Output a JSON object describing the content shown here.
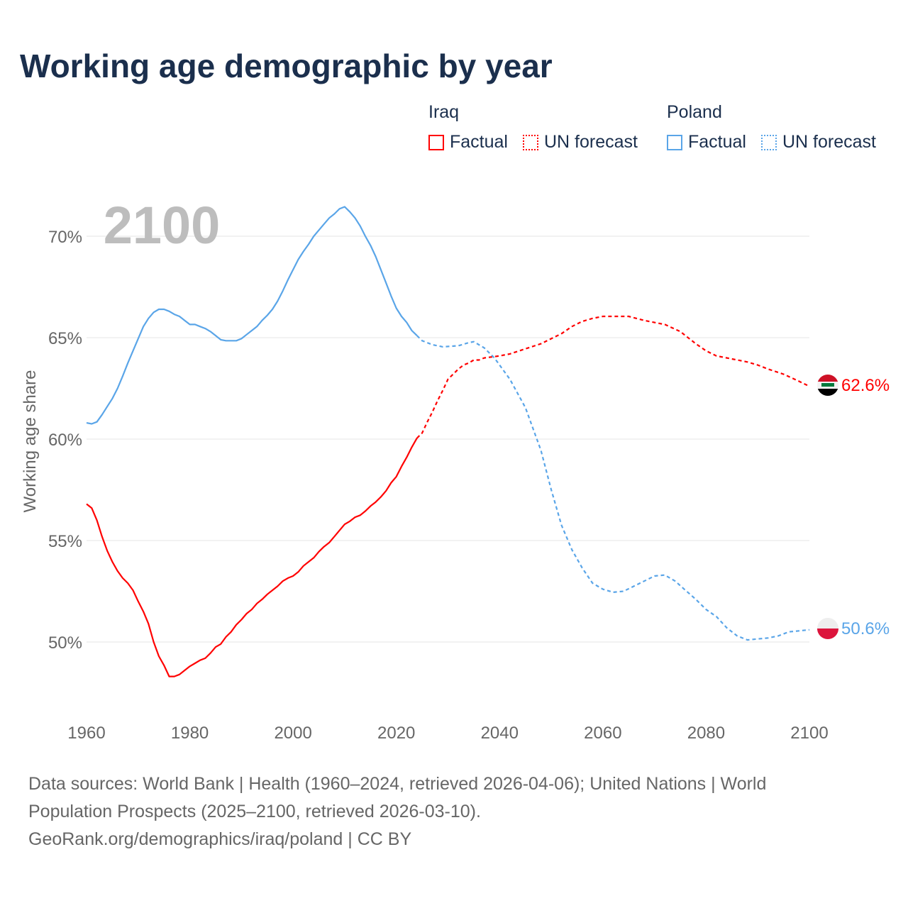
{
  "title": "Working age demographic by year",
  "legend": {
    "groups": [
      {
        "country": "Iraq",
        "factual": "Factual",
        "forecast": "UN forecast",
        "color": "#ff0000"
      },
      {
        "country": "Poland",
        "factual": "Factual",
        "forecast": "UN forecast",
        "color": "#5aa5e8"
      }
    ]
  },
  "footer": {
    "line1": "Data sources: World Bank | Health (1960–2024, retrieved 2026-04-06); United Nations | World",
    "line2": "Population Prospects (2025–2100, retrieved 2026-03-10).",
    "line3": "GeoRank.org/demographics/iraq/poland | CC BY"
  },
  "chart_data": {
    "type": "line",
    "title": "Working age demographic by year",
    "year_watermark": "2100",
    "xlabel": "",
    "ylabel": "Working age share",
    "xlim": [
      1960,
      2100
    ],
    "ylim": [
      46.5,
      72
    ],
    "x_ticks": [
      "1960",
      "1980",
      "2000",
      "2020",
      "2040",
      "2060",
      "2080",
      "2100"
    ],
    "y_ticks": [
      {
        "v": 50,
        "label": "50%"
      },
      {
        "v": 55,
        "label": "55%"
      },
      {
        "v": 60,
        "label": "60%"
      },
      {
        "v": 65,
        "label": "65%"
      },
      {
        "v": 70,
        "label": "70%"
      }
    ],
    "grid": true,
    "series": [
      {
        "name": "Iraq",
        "color": "#ff0000",
        "end_label": "62.6%",
        "factual": [
          [
            1960,
            56.8
          ],
          [
            1961,
            56.6
          ],
          [
            1962,
            56.0
          ],
          [
            1963,
            55.2
          ],
          [
            1964,
            54.5
          ],
          [
            1965,
            53.95
          ],
          [
            1966,
            53.5
          ],
          [
            1967,
            53.15
          ],
          [
            1968,
            52.9
          ],
          [
            1969,
            52.55
          ],
          [
            1970,
            52.0
          ],
          [
            1971,
            51.5
          ],
          [
            1972,
            50.9
          ],
          [
            1973,
            50.0
          ],
          [
            1974,
            49.3
          ],
          [
            1975,
            48.85
          ],
          [
            1976,
            48.3
          ],
          [
            1977,
            48.3
          ],
          [
            1978,
            48.4
          ],
          [
            1979,
            48.6
          ],
          [
            1980,
            48.8
          ],
          [
            1981,
            48.95
          ],
          [
            1982,
            49.1
          ],
          [
            1983,
            49.2
          ],
          [
            1984,
            49.45
          ],
          [
            1985,
            49.75
          ],
          [
            1986,
            49.9
          ],
          [
            1987,
            50.25
          ],
          [
            1988,
            50.5
          ],
          [
            1989,
            50.85
          ],
          [
            1990,
            51.1
          ],
          [
            1991,
            51.4
          ],
          [
            1992,
            51.6
          ],
          [
            1993,
            51.9
          ],
          [
            1994,
            52.1
          ],
          [
            1995,
            52.35
          ],
          [
            1996,
            52.55
          ],
          [
            1997,
            52.75
          ],
          [
            1998,
            53.0
          ],
          [
            1999,
            53.15
          ],
          [
            2000,
            53.25
          ],
          [
            2001,
            53.45
          ],
          [
            2002,
            53.75
          ],
          [
            2003,
            53.95
          ],
          [
            2004,
            54.15
          ],
          [
            2005,
            54.45
          ],
          [
            2006,
            54.7
          ],
          [
            2007,
            54.9
          ],
          [
            2008,
            55.2
          ],
          [
            2009,
            55.5
          ],
          [
            2010,
            55.8
          ],
          [
            2011,
            55.95
          ],
          [
            2012,
            56.15
          ],
          [
            2013,
            56.25
          ],
          [
            2014,
            56.45
          ],
          [
            2015,
            56.7
          ],
          [
            2016,
            56.9
          ],
          [
            2017,
            57.15
          ],
          [
            2018,
            57.45
          ],
          [
            2019,
            57.85
          ],
          [
            2020,
            58.15
          ],
          [
            2021,
            58.65
          ],
          [
            2022,
            59.1
          ],
          [
            2023,
            59.6
          ],
          [
            2024,
            60.05
          ]
        ],
        "forecast": [
          [
            2024,
            60.05
          ],
          [
            2025,
            60.3
          ],
          [
            2026,
            60.85
          ],
          [
            2027,
            61.35
          ],
          [
            2028,
            61.9
          ],
          [
            2029,
            62.4
          ],
          [
            2030,
            62.95
          ],
          [
            2031,
            63.2
          ],
          [
            2032,
            63.45
          ],
          [
            2033,
            63.65
          ],
          [
            2034,
            63.75
          ],
          [
            2035,
            63.9
          ],
          [
            2036,
            63.9
          ],
          [
            2037,
            64.0
          ],
          [
            2040,
            64.1
          ],
          [
            2042,
            64.2
          ],
          [
            2045,
            64.45
          ],
          [
            2048,
            64.7
          ],
          [
            2050,
            64.95
          ],
          [
            2052,
            65.2
          ],
          [
            2054,
            65.55
          ],
          [
            2056,
            65.8
          ],
          [
            2058,
            65.95
          ],
          [
            2060,
            66.05
          ],
          [
            2065,
            66.05
          ],
          [
            2068,
            65.85
          ],
          [
            2070,
            65.75
          ],
          [
            2072,
            65.65
          ],
          [
            2075,
            65.3
          ],
          [
            2078,
            64.7
          ],
          [
            2080,
            64.35
          ],
          [
            2082,
            64.1
          ],
          [
            2085,
            63.95
          ],
          [
            2088,
            63.8
          ],
          [
            2090,
            63.65
          ],
          [
            2092,
            63.45
          ],
          [
            2095,
            63.2
          ],
          [
            2098,
            62.85
          ],
          [
            2100,
            62.6
          ]
        ]
      },
      {
        "name": "Poland",
        "color": "#5aa5e8",
        "end_label": "50.6%",
        "factual": [
          [
            1960,
            60.8
          ],
          [
            1961,
            60.75
          ],
          [
            1962,
            60.85
          ],
          [
            1963,
            61.2
          ],
          [
            1964,
            61.6
          ],
          [
            1965,
            62.0
          ],
          [
            1966,
            62.5
          ],
          [
            1967,
            63.1
          ],
          [
            1968,
            63.75
          ],
          [
            1969,
            64.35
          ],
          [
            1970,
            64.95
          ],
          [
            1971,
            65.55
          ],
          [
            1972,
            65.95
          ],
          [
            1973,
            66.25
          ],
          [
            1974,
            66.4
          ],
          [
            1975,
            66.4
          ],
          [
            1976,
            66.3
          ],
          [
            1977,
            66.15
          ],
          [
            1978,
            66.05
          ],
          [
            1979,
            65.85
          ],
          [
            1980,
            65.65
          ],
          [
            1981,
            65.65
          ],
          [
            1982,
            65.55
          ],
          [
            1983,
            65.45
          ],
          [
            1984,
            65.3
          ],
          [
            1985,
            65.1
          ],
          [
            1986,
            64.9
          ],
          [
            1987,
            64.85
          ],
          [
            1988,
            64.85
          ],
          [
            1989,
            64.85
          ],
          [
            1990,
            64.95
          ],
          [
            1991,
            65.15
          ],
          [
            1992,
            65.35
          ],
          [
            1993,
            65.55
          ],
          [
            1994,
            65.85
          ],
          [
            1995,
            66.1
          ],
          [
            1996,
            66.4
          ],
          [
            1997,
            66.8
          ],
          [
            1998,
            67.3
          ],
          [
            1999,
            67.85
          ],
          [
            2000,
            68.35
          ],
          [
            2001,
            68.85
          ],
          [
            2002,
            69.25
          ],
          [
            2003,
            69.6
          ],
          [
            2004,
            70.0
          ],
          [
            2005,
            70.3
          ],
          [
            2006,
            70.6
          ],
          [
            2007,
            70.9
          ],
          [
            2008,
            71.1
          ],
          [
            2009,
            71.35
          ],
          [
            2010,
            71.45
          ],
          [
            2011,
            71.2
          ],
          [
            2012,
            70.9
          ],
          [
            2013,
            70.5
          ],
          [
            2014,
            70.0
          ],
          [
            2015,
            69.55
          ],
          [
            2016,
            69.0
          ],
          [
            2017,
            68.35
          ],
          [
            2018,
            67.7
          ],
          [
            2019,
            67.05
          ],
          [
            2020,
            66.45
          ],
          [
            2021,
            66.05
          ],
          [
            2022,
            65.75
          ],
          [
            2023,
            65.35
          ],
          [
            2024,
            65.1
          ]
        ],
        "forecast": [
          [
            2024,
            65.1
          ],
          [
            2025,
            64.85
          ],
          [
            2027,
            64.65
          ],
          [
            2029,
            64.55
          ],
          [
            2032,
            64.6
          ],
          [
            2034,
            64.75
          ],
          [
            2035,
            64.8
          ],
          [
            2037,
            64.5
          ],
          [
            2039,
            64.0
          ],
          [
            2042,
            62.95
          ],
          [
            2045,
            61.55
          ],
          [
            2048,
            59.45
          ],
          [
            2050,
            57.5
          ],
          [
            2052,
            55.75
          ],
          [
            2054,
            54.55
          ],
          [
            2056,
            53.65
          ],
          [
            2058,
            52.9
          ],
          [
            2060,
            52.6
          ],
          [
            2062,
            52.45
          ],
          [
            2064,
            52.5
          ],
          [
            2066,
            52.75
          ],
          [
            2068,
            53.0
          ],
          [
            2070,
            53.25
          ],
          [
            2072,
            53.3
          ],
          [
            2074,
            53.0
          ],
          [
            2076,
            52.55
          ],
          [
            2078,
            52.1
          ],
          [
            2080,
            51.6
          ],
          [
            2082,
            51.25
          ],
          [
            2084,
            50.7
          ],
          [
            2086,
            50.3
          ],
          [
            2088,
            50.1
          ],
          [
            2090,
            50.15
          ],
          [
            2092,
            50.2
          ],
          [
            2094,
            50.3
          ],
          [
            2096,
            50.5
          ],
          [
            2098,
            50.55
          ],
          [
            2100,
            50.6
          ]
        ]
      }
    ]
  }
}
